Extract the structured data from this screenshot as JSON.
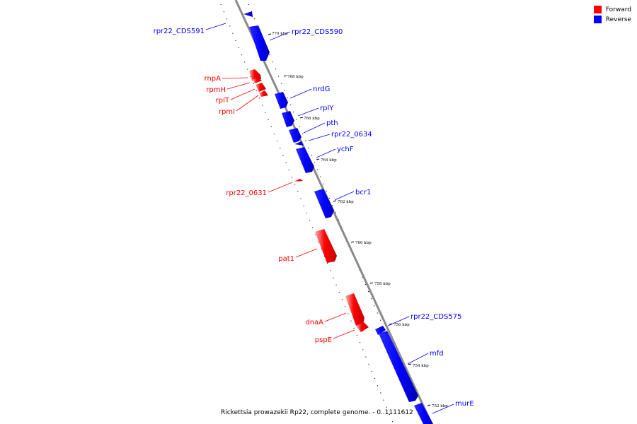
{
  "legend": {
    "forward_label": "Forward",
    "reverse_label": "Reverse",
    "forward_color": "#ff0000",
    "reverse_color": "#0000ff"
  },
  "caption": "Rickettsia prowazekii Rp22, complete genome. - 0..1111612",
  "ticks": [
    "770 kbp",
    "768 kbp",
    "766 kbp",
    "764 kbp",
    "762 kbp",
    "760 kbp",
    "758 kbp",
    "756 kbp",
    "754 kbp",
    "752 kbp"
  ],
  "genes_forward": [
    "rnpA",
    "rpmH",
    "rplT",
    "rpmI",
    "rpr22_0631",
    "pat1",
    "dnaA",
    "pspE"
  ],
  "genes_reverse": [
    "rpr22_CDS591",
    "rpr22_CDS590",
    "nrdG",
    "rplY",
    "pth",
    "rpr22_0634",
    "ychF",
    "bcr1",
    "rpr22_CDS575",
    "mfd",
    "murE"
  ]
}
